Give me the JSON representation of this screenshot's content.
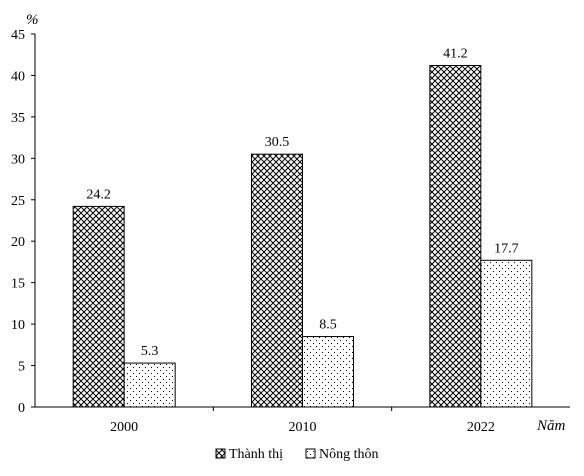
{
  "chart_data": {
    "type": "bar",
    "title": "",
    "ylabel": "%",
    "xlabel": "Năm",
    "ylim": [
      0,
      45
    ],
    "yticks": [
      0,
      5,
      10,
      15,
      20,
      25,
      30,
      35,
      40,
      45
    ],
    "grid": false,
    "legend_position": "bottom",
    "categories": [
      "2000",
      "2010",
      "2022"
    ],
    "series": [
      {
        "name": "Thành thị",
        "pattern": "crosshatch",
        "values": [
          24.2,
          30.5,
          41.2
        ],
        "labels": [
          "24.2",
          "30.5",
          "41.2"
        ]
      },
      {
        "name": "Nông thôn",
        "pattern": "dots",
        "values": [
          5.3,
          8.5,
          17.7
        ],
        "labels": [
          "5.3",
          "8.5",
          "17.7"
        ]
      }
    ]
  }
}
